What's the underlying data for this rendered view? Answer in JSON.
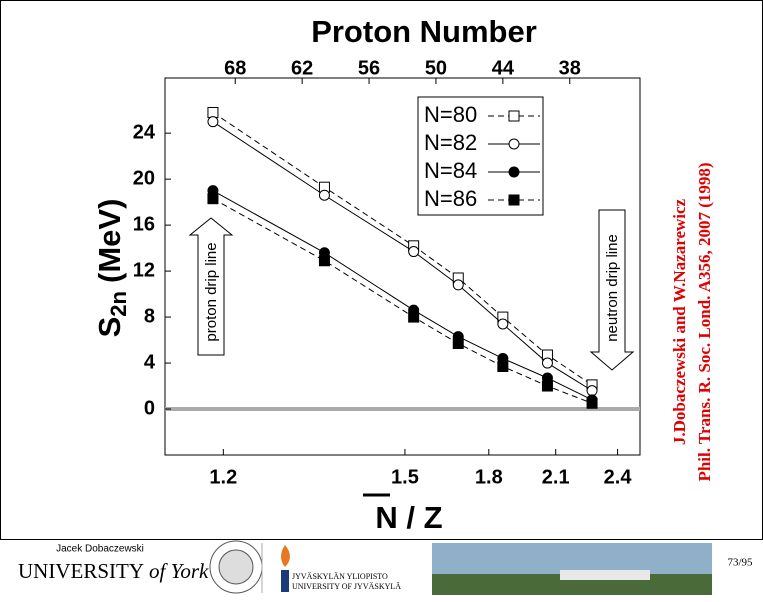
{
  "chart_data": {
    "type": "line",
    "xlabel": "Proton Number",
    "x2label": "N / Z",
    "ylabel": [
      "S",
      "2n",
      "(MeV)"
    ],
    "x": [
      70,
      60,
      52,
      48,
      44,
      40,
      36
    ],
    "xlim": [
      74.3,
      31.7
    ],
    "xticks": [
      68,
      62,
      56,
      50,
      44,
      38
    ],
    "x2ticks": [
      {
        "value": 69.07,
        "label": "1.2"
      },
      {
        "value": 52.78,
        "label": "1.5"
      },
      {
        "value": 45.26,
        "label": "1.8"
      },
      {
        "value": 39.26,
        "label": "2.1"
      },
      {
        "value": 33.71,
        "label": "2.4"
      }
    ],
    "ylim": [
      -4,
      28.8
    ],
    "yticks": [
      0,
      4,
      8,
      12,
      16,
      20,
      24
    ],
    "series": [
      {
        "name": "N=80",
        "color": "#000000",
        "marker": "square",
        "filled": false,
        "dashed": true,
        "values": [
          25.8,
          19.3,
          14.2,
          11.4,
          8.0,
          4.7,
          2.1
        ]
      },
      {
        "name": "N=82",
        "color": "#000000",
        "marker": "circle",
        "filled": false,
        "dashed": false,
        "values": [
          25.0,
          18.6,
          13.7,
          10.8,
          7.4,
          4.0,
          1.6
        ]
      },
      {
        "name": "N=84",
        "color": "#000000",
        "marker": "circle",
        "filled": true,
        "dashed": false,
        "values": [
          19.0,
          13.6,
          8.6,
          6.3,
          4.4,
          2.7,
          0.8
        ]
      },
      {
        "name": "N=86",
        "color": "#000000",
        "marker": "square",
        "filled": true,
        "dashed": true,
        "values": [
          18.3,
          12.9,
          8.0,
          5.7,
          3.7,
          2.0,
          0.5
        ]
      }
    ],
    "annotations": [
      "proton drip line",
      "neutron drip line"
    ],
    "credits": [
      "J.Dobaczewski and W.Nazarewicz",
      "Phil. Trans. R. Soc. Lond. A356, 2007 (1998)"
    ]
  },
  "footer": {
    "author": "Jacek Dobaczewski",
    "york": [
      "UNIVERSITY",
      "of York"
    ],
    "jyvaskyla": [
      "JYVÄSKYLÄN YLIOPISTO",
      "UNIVERSITY OF JYVÄSKYLÄ"
    ],
    "page": "73/95"
  }
}
